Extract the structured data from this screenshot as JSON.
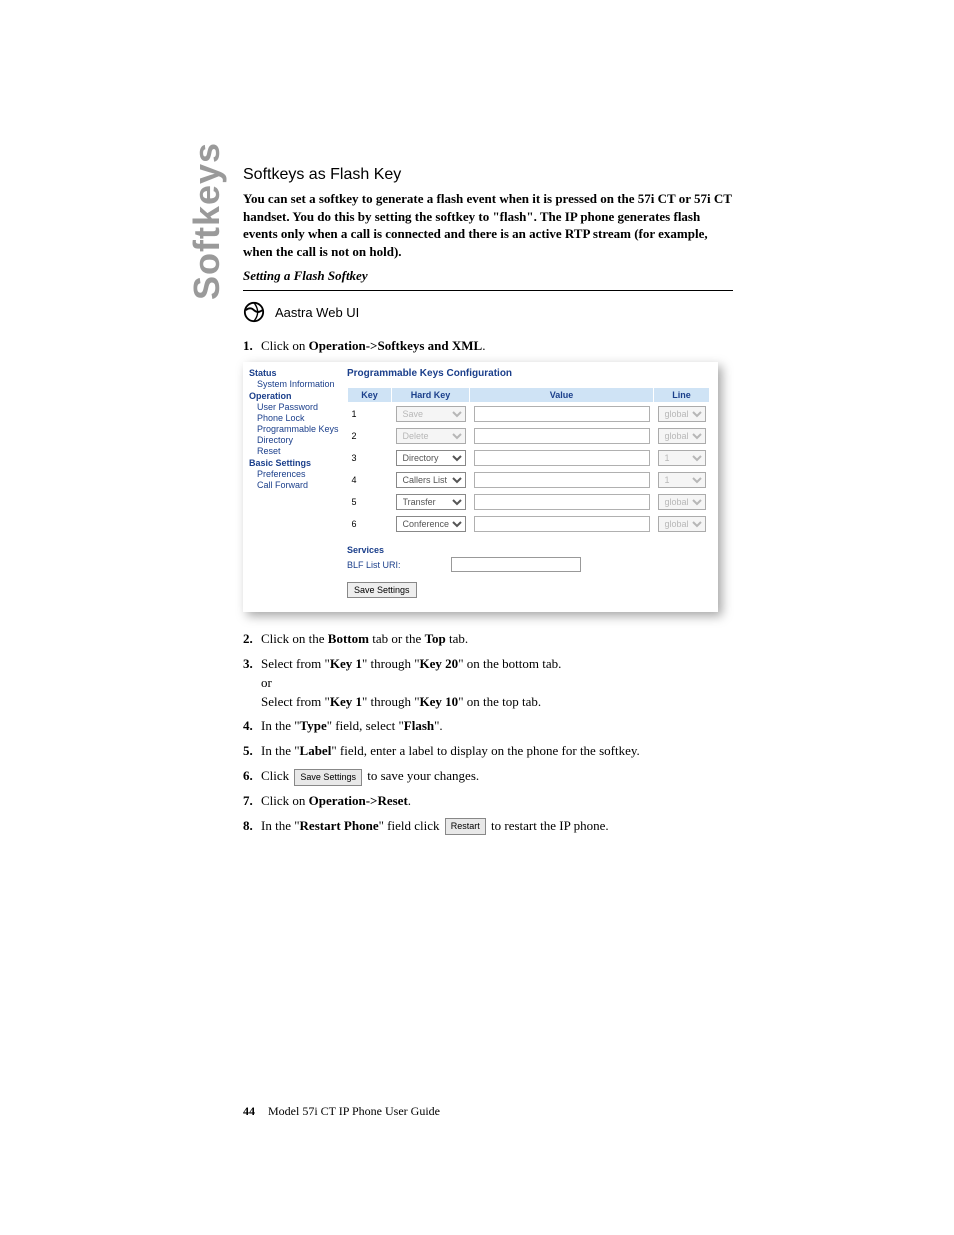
{
  "sidebar": {
    "label": "Softkeys"
  },
  "heading": "Softkeys as Flash Key",
  "intro": {
    "pre": "You can set a softkey to generate a flash event when it is pressed on the 57i CT or 57i CT handset. You do this by setting the softkey to \"",
    "flash": "flash",
    "post": "\". The IP phone generates flash events only when a call is connected and there is an active RTP stream (for example, when the call is not on hold)."
  },
  "subsection": "Setting a Flash Softkey",
  "webui_label": "Aastra Web UI",
  "steps": {
    "s1": {
      "num": "1.",
      "a": "Click on ",
      "b": "Operation->Softkeys and XML",
      "c": "."
    },
    "s2": {
      "num": "2.",
      "a": "Click on the ",
      "b1": "Bottom",
      "mid": " tab or the ",
      "b2": "Top",
      "c": " tab."
    },
    "s3": {
      "num": "3.",
      "a": "Select from \"",
      "b1": "Key 1",
      "mid1": "\" through \"",
      "b2": "Key 20",
      "mid2": "\" on the bottom tab.",
      "or": "or",
      "a2": "Select from \"",
      "b3": "Key 1",
      "mid3": "\" through \"",
      "b4": "Key 10",
      "c": "\" on the top tab."
    },
    "s4": {
      "num": "4.",
      "a": "In the \"",
      "b": "Type",
      "mid": "\" field, select \"",
      "b2": "Flash",
      "c": "\"."
    },
    "s5": {
      "num": "5.",
      "a": "In the \"",
      "b": "Label",
      "c": "\" field, enter a label to display on the phone for the softkey."
    },
    "s6": {
      "num": "6.",
      "a": "Click ",
      "btn": "Save Settings",
      "c": " to save your changes."
    },
    "s7": {
      "num": "7.",
      "a": "Click on ",
      "b": "Operation->Reset",
      "c": "."
    },
    "s8": {
      "num": "8.",
      "a": "In the \"",
      "b": "Restart Phone",
      "mid": "\" field click ",
      "btn": "Restart",
      "c": " to restart the IP phone."
    }
  },
  "panel": {
    "nav": {
      "status": "Status",
      "sysinfo": "System Information",
      "operation": "Operation",
      "userpw": "User Password",
      "phonelock": "Phone Lock",
      "progkeys": "Programmable Keys",
      "directory": "Directory",
      "reset": "Reset",
      "basic": "Basic Settings",
      "prefs": "Preferences",
      "callfwd": "Call Forward"
    },
    "title": "Programmable Keys Configuration",
    "headers": {
      "key": "Key",
      "hardkey": "Hard Key",
      "value": "Value",
      "line": "Line"
    },
    "rows": [
      {
        "key": "1",
        "hk": "Save",
        "hk_disabled": true,
        "line": "global",
        "line_disabled": true
      },
      {
        "key": "2",
        "hk": "Delete",
        "hk_disabled": true,
        "line": "global",
        "line_disabled": true
      },
      {
        "key": "3",
        "hk": "Directory",
        "hk_disabled": false,
        "line": "1",
        "line_disabled": true
      },
      {
        "key": "4",
        "hk": "Callers List",
        "hk_disabled": false,
        "line": "1",
        "line_disabled": true
      },
      {
        "key": "5",
        "hk": "Transfer",
        "hk_disabled": false,
        "line": "global",
        "line_disabled": true
      },
      {
        "key": "6",
        "hk": "Conference",
        "hk_disabled": false,
        "line": "global",
        "line_disabled": true
      }
    ],
    "services": "Services",
    "blf": "BLF List URI:",
    "save_btn": "Save Settings"
  },
  "footer": {
    "page": "44",
    "title": "Model 57i CT IP Phone User Guide"
  }
}
